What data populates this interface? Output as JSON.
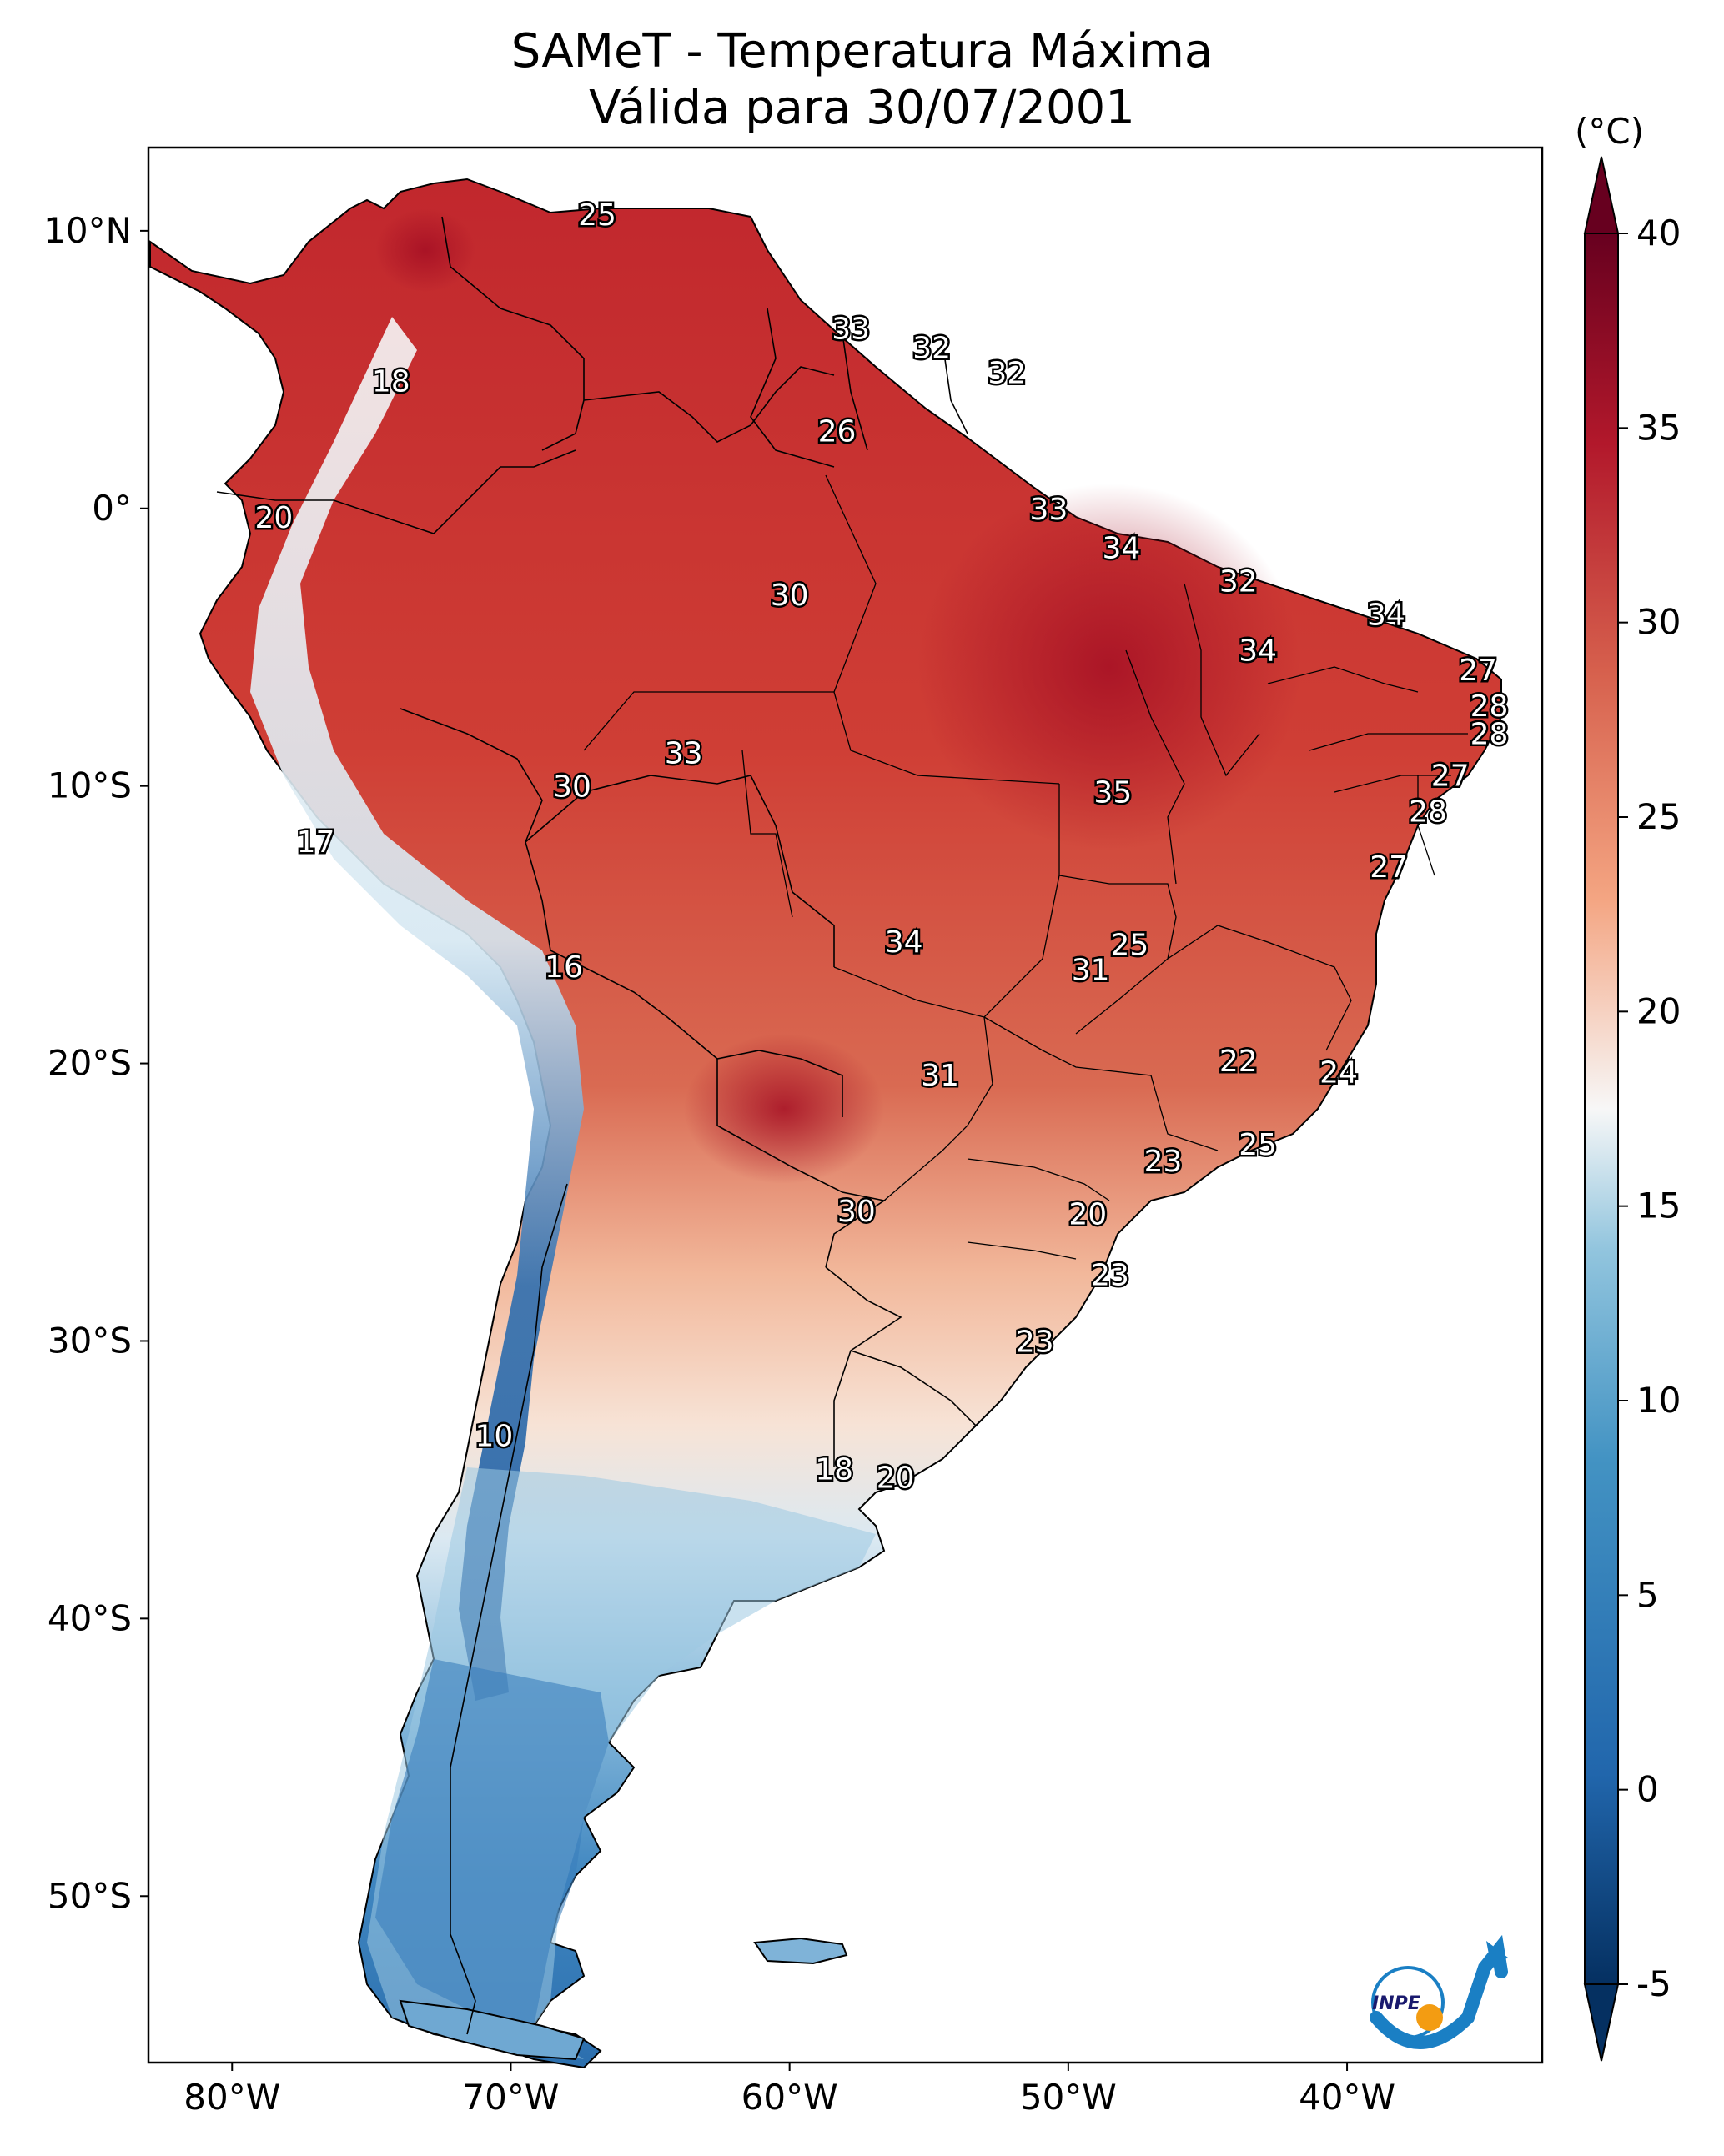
{
  "map": {
    "title_line1": "SAMeT - Temperatura Máxima",
    "title_line2": "Válida para 30/07/2001",
    "lat_ticks": [
      {
        "lat": 10,
        "label": "10°N"
      },
      {
        "lat": 0,
        "label": "0°"
      },
      {
        "lat": -10,
        "label": "10°S"
      },
      {
        "lat": -20,
        "label": "20°S"
      },
      {
        "lat": -30,
        "label": "30°S"
      },
      {
        "lat": -40,
        "label": "40°S"
      },
      {
        "lat": -50,
        "label": "50°S"
      }
    ],
    "lon_ticks": [
      {
        "lon": -80,
        "label": "80°W"
      },
      {
        "lon": -70,
        "label": "70°W"
      },
      {
        "lon": -60,
        "label": "60°W"
      },
      {
        "lon": -50,
        "label": "50°W"
      },
      {
        "lon": -40,
        "label": "40°W"
      }
    ],
    "extent": {
      "lon_min": -83,
      "lon_max": -33,
      "lat_min": -56,
      "lat_max": 13
    },
    "colorbar": {
      "unit": "(°C)",
      "min": -5,
      "max": 40,
      "ticks": [
        {
          "value": 40,
          "label": "40"
        },
        {
          "value": 35,
          "label": "35"
        },
        {
          "value": 30,
          "label": "30"
        },
        {
          "value": 25,
          "label": "25"
        },
        {
          "value": 20,
          "label": "20"
        },
        {
          "value": 15,
          "label": "15"
        },
        {
          "value": 10,
          "label": "10"
        },
        {
          "value": 5,
          "label": "5"
        },
        {
          "value": 0,
          "label": "0"
        },
        {
          "value": -5,
          "label": "-5"
        }
      ],
      "colors": {
        "cold": "#053061",
        "mid": "#f7f7f7",
        "warm": "#67001f"
      }
    },
    "temperature_labels": [
      {
        "lon": -66.9,
        "lat": 10.6,
        "value": "25"
      },
      {
        "lon": -74.3,
        "lat": 4.6,
        "value": "18"
      },
      {
        "lon": -57.8,
        "lat": 6.5,
        "value": "33"
      },
      {
        "lon": -54.9,
        "lat": 5.8,
        "value": "32"
      },
      {
        "lon": -52.2,
        "lat": 4.9,
        "value": "32"
      },
      {
        "lon": -58.3,
        "lat": 2.8,
        "value": "26"
      },
      {
        "lon": -78.5,
        "lat": -0.3,
        "value": "20"
      },
      {
        "lon": -50.7,
        "lat": 0.0,
        "value": "33"
      },
      {
        "lon": -48.1,
        "lat": -1.4,
        "value": "34"
      },
      {
        "lon": -43.9,
        "lat": -2.6,
        "value": "32"
      },
      {
        "lon": -38.6,
        "lat": -3.8,
        "value": "34"
      },
      {
        "lon": -60.0,
        "lat": -3.1,
        "value": "30"
      },
      {
        "lon": -43.2,
        "lat": -5.1,
        "value": "34"
      },
      {
        "lon": -35.3,
        "lat": -5.8,
        "value": "27"
      },
      {
        "lon": -34.9,
        "lat": -7.1,
        "value": "28"
      },
      {
        "lon": -34.9,
        "lat": -8.1,
        "value": "28"
      },
      {
        "lon": -63.8,
        "lat": -8.8,
        "value": "33"
      },
      {
        "lon": -36.3,
        "lat": -9.6,
        "value": "27"
      },
      {
        "lon": -67.8,
        "lat": -10.0,
        "value": "30"
      },
      {
        "lon": -48.4,
        "lat": -10.2,
        "value": "35"
      },
      {
        "lon": -37.1,
        "lat": -10.9,
        "value": "28"
      },
      {
        "lon": -77.0,
        "lat": -12.0,
        "value": "17"
      },
      {
        "lon": -38.5,
        "lat": -12.9,
        "value": "27"
      },
      {
        "lon": -55.9,
        "lat": -15.6,
        "value": "34"
      },
      {
        "lon": -47.8,
        "lat": -15.7,
        "value": "25"
      },
      {
        "lon": -49.2,
        "lat": -16.6,
        "value": "31"
      },
      {
        "lon": -68.1,
        "lat": -16.5,
        "value": "16"
      },
      {
        "lon": -43.9,
        "lat": -19.9,
        "value": "22"
      },
      {
        "lon": -54.6,
        "lat": -20.4,
        "value": "31"
      },
      {
        "lon": -40.3,
        "lat": -20.3,
        "value": "24"
      },
      {
        "lon": -43.2,
        "lat": -22.9,
        "value": "25"
      },
      {
        "lon": -46.6,
        "lat": -23.5,
        "value": "23"
      },
      {
        "lon": -57.6,
        "lat": -25.3,
        "value": "30"
      },
      {
        "lon": -49.3,
        "lat": -25.4,
        "value": "20"
      },
      {
        "lon": -48.5,
        "lat": -27.6,
        "value": "23"
      },
      {
        "lon": -51.2,
        "lat": -30.0,
        "value": "23"
      },
      {
        "lon": -70.6,
        "lat": -33.4,
        "value": "10"
      },
      {
        "lon": -58.4,
        "lat": -34.6,
        "value": "18"
      },
      {
        "lon": -56.2,
        "lat": -34.9,
        "value": "20"
      }
    ],
    "logo": {
      "text": "INPE",
      "arrow_color": "#1a7fc4",
      "dot_color": "#f39c12"
    }
  }
}
